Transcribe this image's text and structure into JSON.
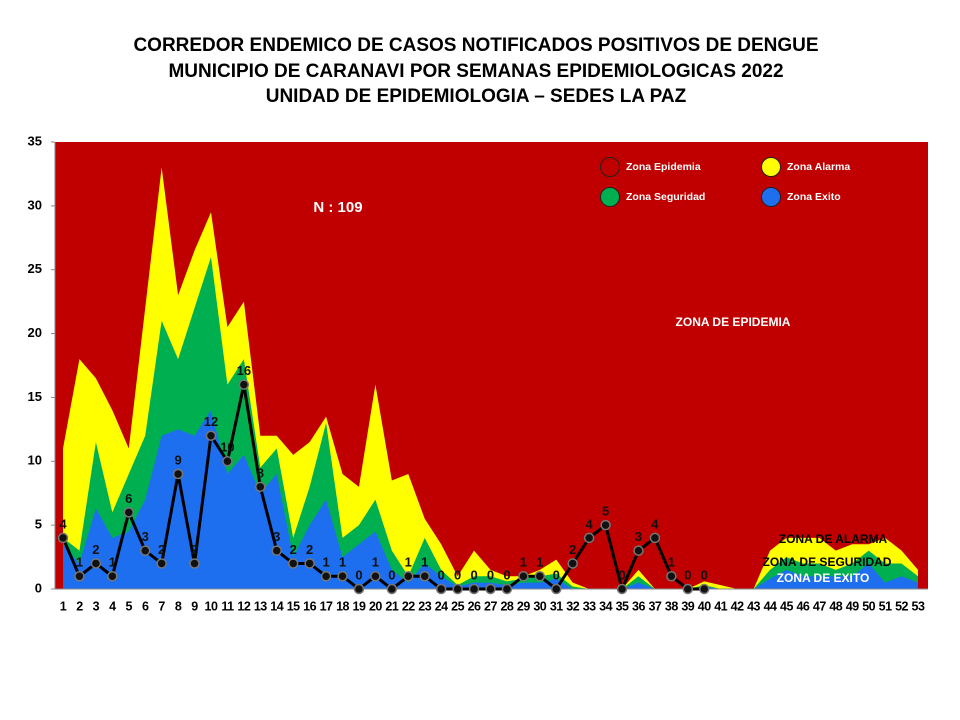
{
  "chart_data": {
    "type": "area",
    "title": [
      "CORREDOR ENDEMICO DE CASOS NOTIFICADOS POSITIVOS DE DENGUE",
      "MUNICIPIO DE CARANAVI POR SEMANAS EPIDEMIOLOGICAS 2022",
      "UNIDAD DE EPIDEMIOLOGIA – SEDES LA PAZ"
    ],
    "annotations": [
      "N : 109",
      "ZONA DE EPIDEMIA",
      "ZONA DE ALARMA",
      "ZONA DE  SEGURIDAD",
      "ZONA DE  EXITO"
    ],
    "background_zone": {
      "name": "Zona Epidemia",
      "color": "#c00000"
    },
    "x": [
      1,
      2,
      3,
      4,
      5,
      6,
      7,
      8,
      9,
      10,
      11,
      12,
      13,
      14,
      15,
      16,
      17,
      18,
      19,
      20,
      21,
      22,
      23,
      24,
      25,
      26,
      27,
      28,
      29,
      30,
      31,
      32,
      33,
      34,
      35,
      36,
      37,
      38,
      39,
      40,
      41,
      42,
      43,
      44,
      45,
      46,
      47,
      48,
      49,
      50,
      51,
      52,
      53
    ],
    "xlim": [
      1,
      53
    ],
    "ylim": [
      0,
      35
    ],
    "yticks": [
      0,
      5,
      10,
      15,
      20,
      25,
      30,
      35
    ],
    "series": [
      {
        "name": "Zona Alarma",
        "color": "#ffff00",
        "values": [
          11,
          18,
          16.5,
          14,
          11,
          22,
          33,
          23,
          26.5,
          29.5,
          20.5,
          22.5,
          12,
          12,
          10.5,
          11.5,
          13.5,
          9,
          8,
          16,
          8.5,
          9,
          5.5,
          3.5,
          1,
          3,
          1.5,
          1,
          1,
          1.5,
          2.3,
          0.5,
          0,
          0,
          0,
          1.5,
          0,
          0,
          0,
          0.6,
          0.3,
          0,
          0,
          3,
          4,
          4,
          4,
          3,
          3.5,
          3.5,
          4,
          3,
          1.5
        ]
      },
      {
        "name": "Zona Seguridad",
        "color": "#00b050",
        "values": [
          4,
          3,
          11.5,
          6,
          9,
          12,
          21,
          18,
          22,
          26,
          16,
          18,
          9.5,
          11,
          4,
          8,
          13,
          4,
          5,
          7,
          3,
          1,
          4,
          1.5,
          0.3,
          1,
          1,
          0.6,
          0.8,
          1,
          1.2,
          0.2,
          0,
          0,
          0,
          1,
          0,
          0,
          0,
          0.3,
          0,
          0,
          0,
          1.5,
          2.5,
          2,
          2,
          1.5,
          2,
          3,
          2,
          2,
          1
        ]
      },
      {
        "name": "Zona Exito",
        "color": "#1e6ff0",
        "values": [
          3.5,
          2,
          6.3,
          4,
          4.5,
          7,
          12,
          12.5,
          12,
          14,
          9,
          10.5,
          7.5,
          9,
          2.5,
          5,
          7,
          2.5,
          3.5,
          4.5,
          1.5,
          0.5,
          2,
          1,
          0.2,
          0.5,
          0.5,
          0.3,
          0.5,
          0.5,
          0.8,
          0,
          0,
          0,
          0,
          0.5,
          0,
          0,
          0,
          0.2,
          0,
          0,
          0,
          0.8,
          1.5,
          1,
          1,
          1,
          1,
          2,
          0.5,
          1,
          0.5
        ]
      }
    ],
    "cases": {
      "type": "line",
      "color": "#000000",
      "values": [
        4,
        1,
        2,
        1,
        6,
        3,
        2,
        9,
        2,
        12,
        10,
        16,
        8,
        3,
        2,
        2,
        1,
        1,
        0,
        1,
        0,
        1,
        1,
        0,
        0,
        0,
        0,
        0,
        1,
        1,
        0,
        2,
        4,
        5,
        0,
        3,
        4,
        1,
        0,
        0,
        null,
        null,
        null,
        null,
        null,
        null,
        null,
        null,
        null,
        null,
        null,
        null,
        null
      ]
    }
  }
}
